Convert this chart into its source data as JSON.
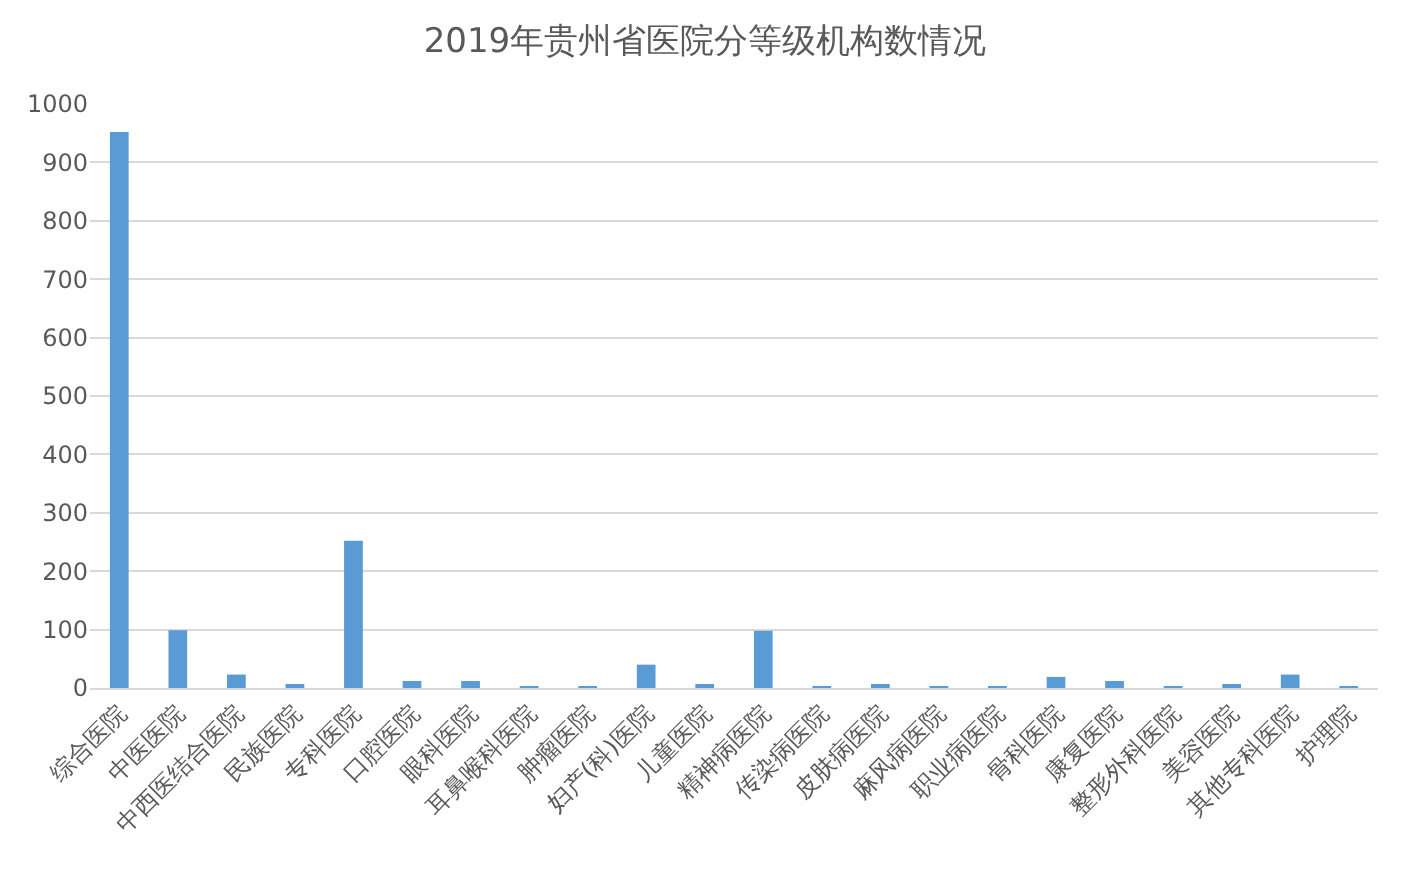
{
  "chart_data": {
    "type": "bar",
    "title": "2019年贵州省医院分等级机构数情况",
    "categories": [
      "综合医院",
      "中医医院",
      "中西医结合医院",
      "民族医院",
      "专科医院",
      "口腔医院",
      "眼科医院",
      "耳鼻喉科医院",
      "肿瘤医院",
      "妇产(科)医院",
      "儿童医院",
      "精神病医院",
      "传染病医院",
      "皮肤病医院",
      "麻风病医院",
      "职业病医院",
      "骨科医院",
      "康复医院",
      "整形外科医院",
      "美容医院",
      "其他专科医院",
      "护理院"
    ],
    "values": [
      952,
      99,
      23,
      6,
      252,
      12,
      12,
      3,
      3,
      40,
      6,
      98,
      3,
      6,
      3,
      3,
      19,
      12,
      3,
      6,
      23,
      2
    ],
    "color": "#5b9bd5",
    "ylim": [
      0,
      1000
    ],
    "yticks": [
      0,
      100,
      200,
      300,
      400,
      500,
      600,
      700,
      800,
      900,
      1000
    ],
    "grid": "y"
  }
}
